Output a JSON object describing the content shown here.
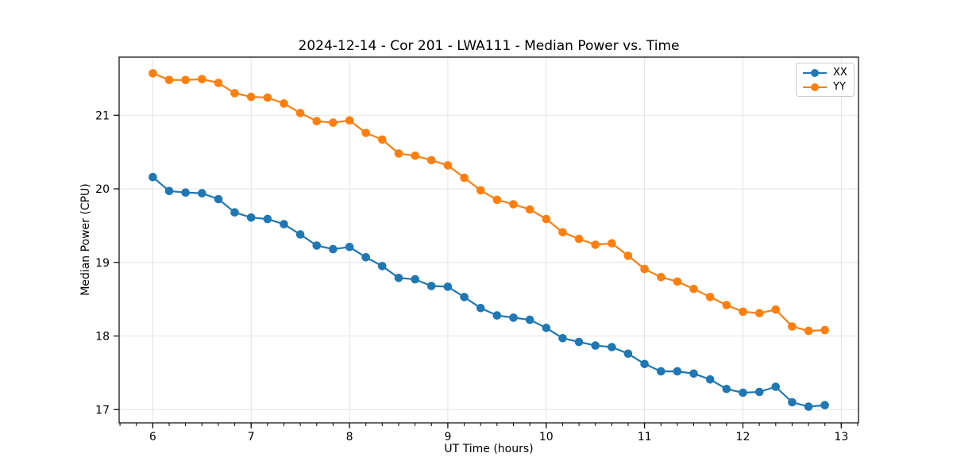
{
  "figure": {
    "title": "2024-12-14 - Cor 201 - LWA111 - Median Power vs. Time"
  },
  "chart_data": {
    "type": "line",
    "title": "2024-12-14 - Cor 201 - LWA111 - Median Power vs. Time",
    "xlabel": "UT Time (hours)",
    "ylabel": "Median Power (CPU)",
    "xlim": [
      5.658,
      13.175
    ],
    "ylim": [
      16.82,
      21.79
    ],
    "x_major_ticks": [
      6,
      7,
      8,
      9,
      10,
      11,
      12,
      13
    ],
    "y_major_ticks": [
      17,
      18,
      19,
      20,
      21
    ],
    "x_minor_step": 0.1666667,
    "grid": true,
    "grid_color": "#e0e0e0",
    "legend_position": "upper right",
    "marker": "circle",
    "x": [
      6,
      6.167,
      6.333,
      6.5,
      6.667,
      6.833,
      7,
      7.167,
      7.333,
      7.5,
      7.667,
      7.833,
      8,
      8.167,
      8.333,
      8.5,
      8.667,
      8.833,
      9,
      9.167,
      9.333,
      9.5,
      9.667,
      9.833,
      10,
      10.167,
      10.333,
      10.5,
      10.667,
      10.833,
      11,
      11.167,
      11.333,
      11.5,
      11.667,
      11.833,
      12,
      12.167,
      12.333,
      12.5,
      12.667,
      12.833
    ],
    "series": [
      {
        "name": "XX",
        "color": "#1f77b4",
        "values": [
          20.16,
          19.97,
          19.95,
          19.94,
          19.86,
          19.68,
          19.61,
          19.59,
          19.52,
          19.38,
          19.23,
          19.18,
          19.21,
          19.07,
          18.95,
          18.79,
          18.77,
          18.68,
          18.67,
          18.53,
          18.38,
          18.28,
          18.25,
          18.22,
          18.11,
          17.97,
          17.92,
          17.87,
          17.85,
          17.76,
          17.62,
          17.52,
          17.52,
          17.49,
          17.41,
          17.28,
          17.23,
          17.24,
          17.31,
          17.1,
          17.04,
          17.06
        ]
      },
      {
        "name": "YY",
        "color": "#ff7f0e",
        "values": [
          21.57,
          21.48,
          21.48,
          21.49,
          21.44,
          21.3,
          21.25,
          21.24,
          21.16,
          21.03,
          20.92,
          20.9,
          20.93,
          20.76,
          20.67,
          20.48,
          20.45,
          20.39,
          20.32,
          20.15,
          19.98,
          19.85,
          19.79,
          19.72,
          19.59,
          19.41,
          19.32,
          19.24,
          19.26,
          19.09,
          18.91,
          18.8,
          18.74,
          18.64,
          18.53,
          18.42,
          18.33,
          18.31,
          18.36,
          18.13,
          18.07,
          18.08
        ]
      }
    ]
  }
}
